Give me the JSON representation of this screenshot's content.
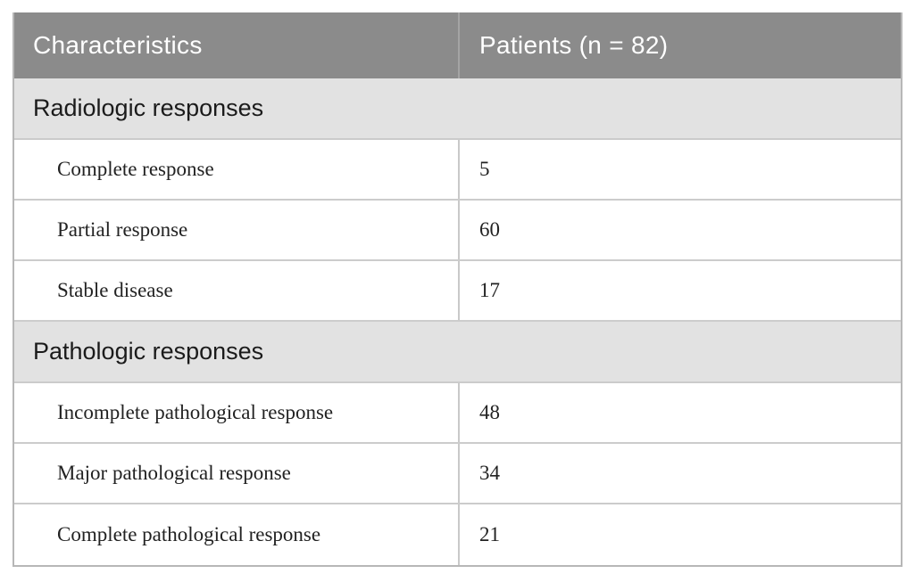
{
  "table": {
    "header": {
      "col1": "Characteristics",
      "col2": "Patients (n = 82)"
    },
    "sections": [
      {
        "title": "Radiologic responses",
        "rows": [
          {
            "label": "Complete response",
            "value": "5"
          },
          {
            "label": "Partial response",
            "value": "60"
          },
          {
            "label": "Stable disease",
            "value": "17"
          }
        ]
      },
      {
        "title": "Pathologic responses",
        "rows": [
          {
            "label": "Incomplete pathological response",
            "value": "48"
          },
          {
            "label": "Major pathological response",
            "value": "34"
          },
          {
            "label": "Complete pathological response",
            "value": "21"
          }
        ]
      }
    ]
  },
  "colors": {
    "header_bg": "#8b8b8b",
    "header_text": "#ffffff",
    "section_bg": "#e2e2e2",
    "row_divider": "#cccccc",
    "outer_border": "#b7b7b7",
    "body_text": "#222222"
  }
}
